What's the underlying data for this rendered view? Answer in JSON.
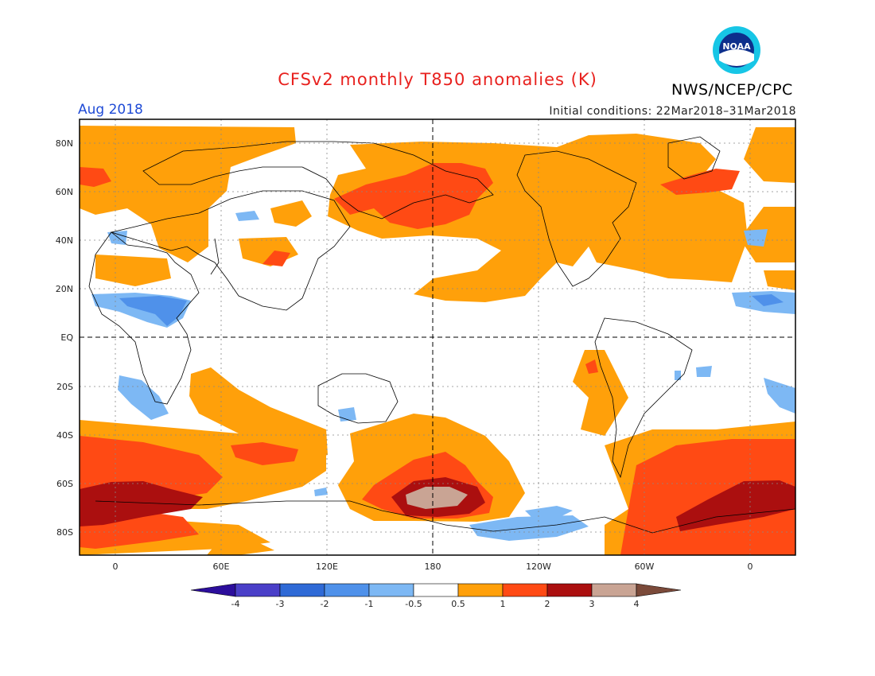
{
  "title": "CFSv2 monthly T850 anomalies (K)",
  "period": "Aug 2018",
  "init": "Initial conditions: 22Mar2018–31Mar2018",
  "org": "NWS/NCEP/CPC",
  "logo_text": "NOAA",
  "lat_labels": [
    "80N",
    "60N",
    "40N",
    "20N",
    "EQ",
    "20S",
    "40S",
    "60S",
    "80S"
  ],
  "lon_labels": [
    "0",
    "60E",
    "120E",
    "180",
    "120W",
    "60W",
    "0"
  ],
  "colorbar": {
    "labels": [
      "-4",
      "-3",
      "-2",
      "-1",
      "-0.5",
      "0.5",
      "1",
      "2",
      "3",
      "4"
    ],
    "colors": [
      "#2c0e9c",
      "#4a3fc8",
      "#2f6ad6",
      "#4f91ea",
      "#7db8f4",
      "#ffffff",
      "#ffa00a",
      "#ff4a14",
      "#ab0f0f",
      "#c9a494",
      "#7b4a3a"
    ]
  }
}
